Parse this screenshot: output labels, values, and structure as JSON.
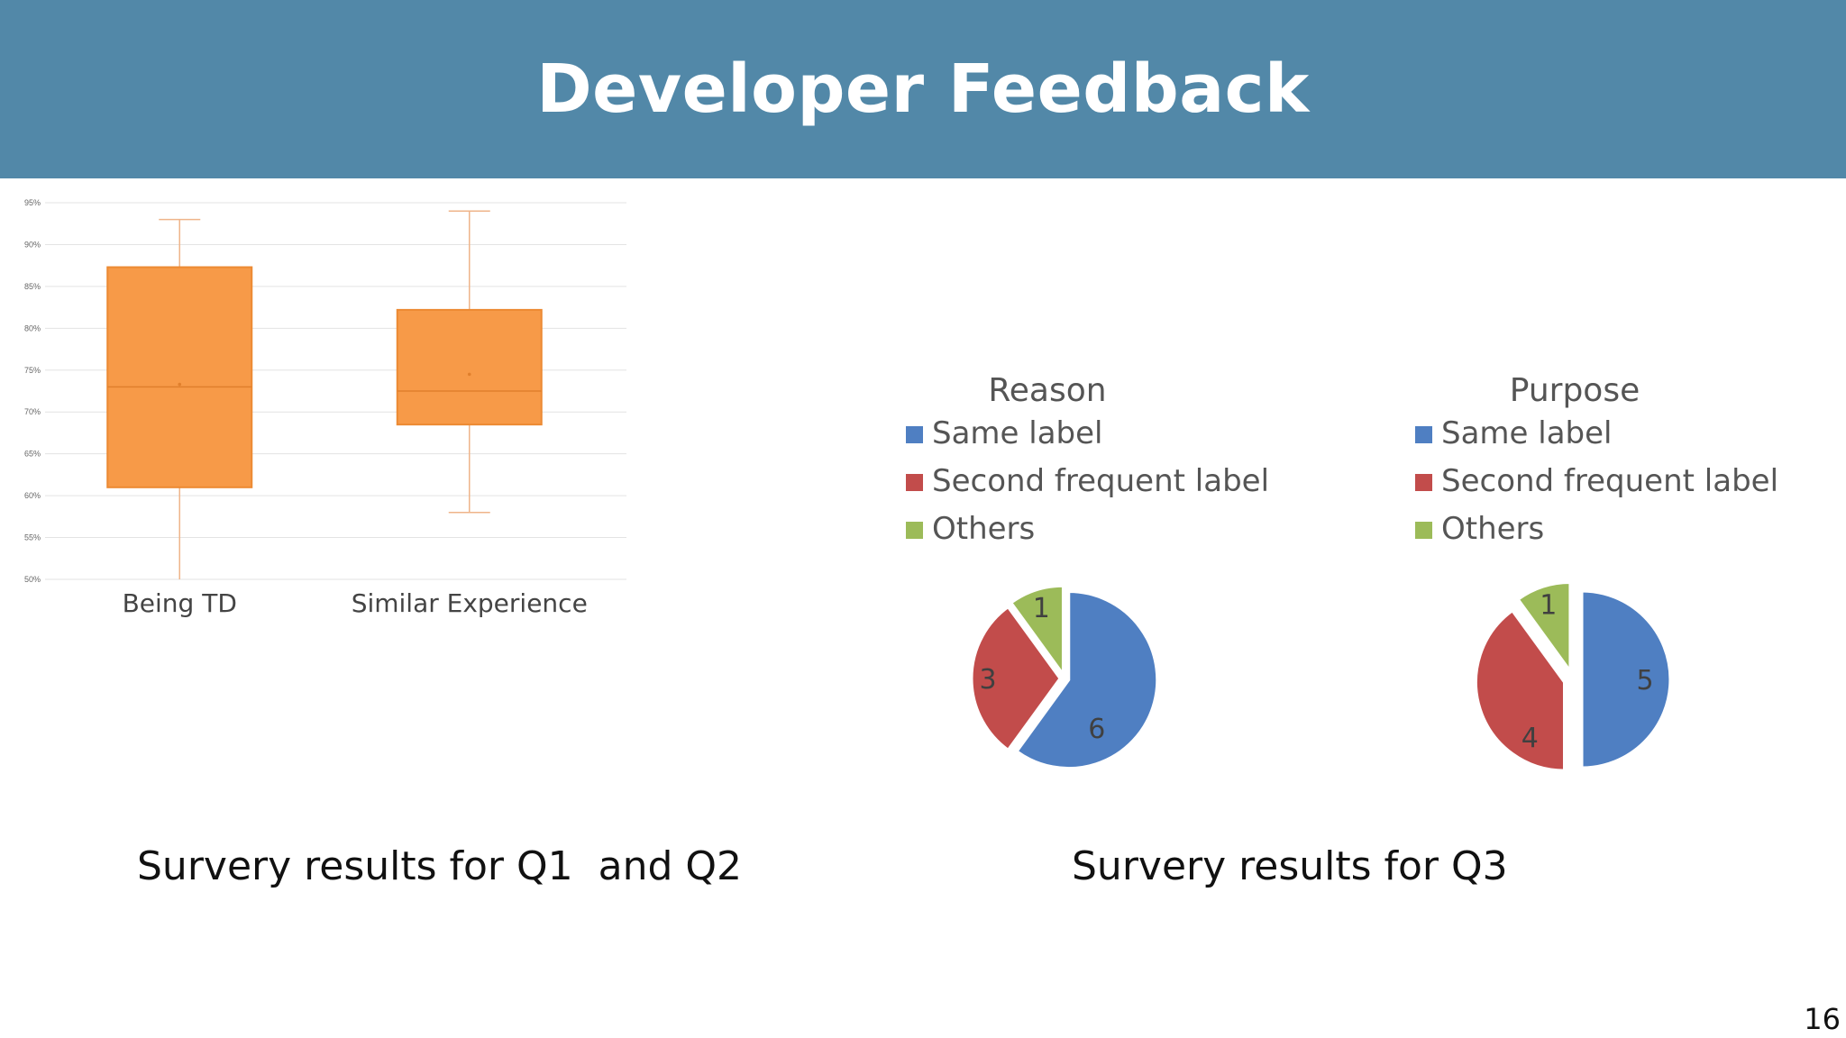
{
  "slide": {
    "title": "Developer Feedback",
    "caption_left": "Survery results for Q1  and Q2",
    "caption_right": "Survery results for Q3",
    "page_number": "16"
  },
  "colors": {
    "banner": "#5288a8",
    "box_fill": "#f79a48",
    "box_stroke": "#ec8a33",
    "whisker": "#efb48a",
    "same_label": "#4f7fc2",
    "second_label": "#c24c4b",
    "others": "#9cbb59"
  },
  "chart_data": [
    {
      "type": "box",
      "title": "",
      "categories": [
        "Being TD",
        "Similar Experience"
      ],
      "series": [
        {
          "category": "Being TD",
          "min": 0.5,
          "q1": 0.61,
          "median": 0.73,
          "mean": 0.733,
          "q3": 0.873,
          "max": 0.93
        },
        {
          "category": "Similar Experience",
          "min": 0.58,
          "q1": 0.685,
          "median": 0.725,
          "mean": 0.745,
          "q3": 0.822,
          "max": 0.94
        }
      ],
      "yticks": [
        "50%",
        "55%",
        "60%",
        "65%",
        "70%",
        "75%",
        "80%",
        "85%",
        "90%",
        "95%"
      ],
      "ylim": [
        0.5,
        0.95
      ],
      "grid": true
    },
    {
      "type": "pie",
      "title": "Reason",
      "legend": [
        "Same label",
        "Second frequent label",
        "Others"
      ],
      "values": [
        6,
        3,
        1
      ],
      "legend_position": "top"
    },
    {
      "type": "pie",
      "title": "Purpose",
      "legend": [
        "Same label",
        "Second frequent label",
        "Others"
      ],
      "values": [
        5,
        4,
        1
      ],
      "legend_position": "top"
    }
  ]
}
